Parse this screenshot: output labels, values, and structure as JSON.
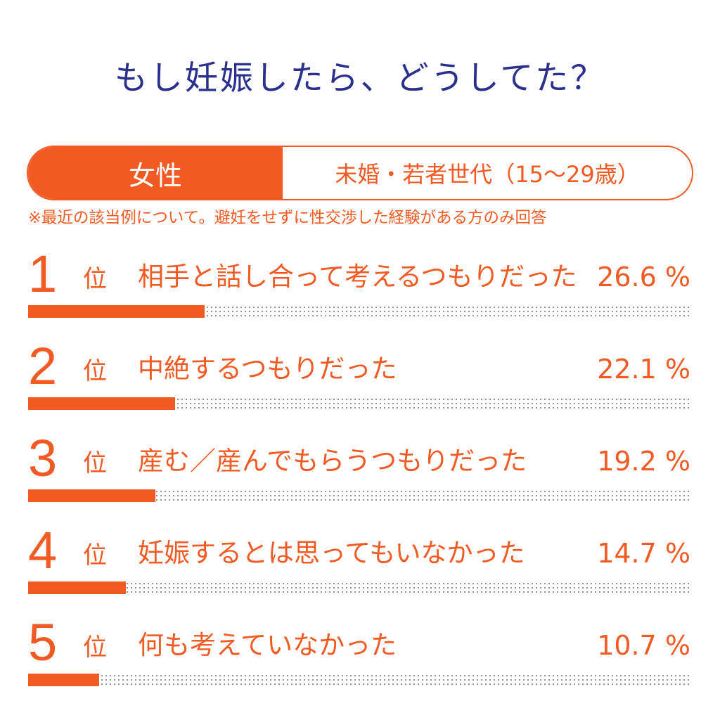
{
  "title": "もし妊娠したら、どうしてた？",
  "badge": {
    "left": "女性",
    "right": "未婚・若者世代（15〜29歳）"
  },
  "note": "※最近の該当例について。避妊をせずに性交渉した経験がある方のみ回答",
  "colors": {
    "accent": "#f15a22",
    "title": "#2b2f8e"
  },
  "rank_suffix": "位",
  "chart_data": {
    "type": "bar",
    "title": "もし妊娠したら、どうしてた？",
    "xlabel": "",
    "ylabel": "",
    "ylim": [
      0,
      100
    ],
    "categories": [
      "相手と話し合って考えるつもりだった",
      "中絶するつもりだった",
      "産む／産んでもらうつもりだった",
      "妊娠するとは思ってもいなかった",
      "何も考えていなかった"
    ],
    "ranks": [
      "1",
      "2",
      "3",
      "4",
      "5"
    ],
    "values": [
      26.6,
      22.1,
      19.2,
      14.7,
      10.7
    ],
    "value_labels": [
      "26.6 %",
      "22.1 %",
      "19.2 %",
      "14.7 %",
      "10.7 %"
    ]
  }
}
